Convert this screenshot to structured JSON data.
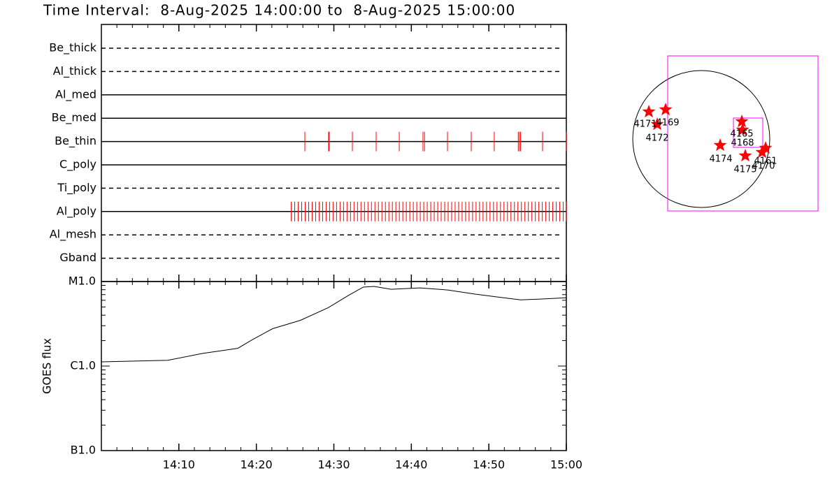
{
  "title": "Time Interval:  8-Aug-2025 14:00:00 to  8-Aug-2025 15:00:00",
  "chart_data": [
    {
      "type": "timeline",
      "categories": [
        "Be_thick",
        "Al_thick",
        "Al_med",
        "Be_med",
        "Be_thin",
        "C_poly",
        "Ti_poly",
        "Al_poly",
        "Al_mesh",
        "Gband"
      ],
      "dashed": [
        true,
        true,
        false,
        false,
        false,
        false,
        true,
        false,
        true,
        true
      ],
      "color": "#ff0000",
      "exposures": [
        [],
        [],
        [],
        [],
        [
          26.26,
          29.32,
          29.4,
          32.39,
          35.46,
          38.44,
          41.5,
          41.7,
          44.66,
          47.73,
          50.7,
          53.8,
          53.95,
          54.1,
          56.93,
          60.0
        ],
        [],
        [],
        [
          24.5,
          24.95,
          25.4,
          25.85,
          26.3,
          26.75,
          27.2,
          27.65,
          28.1,
          28.55,
          29.0,
          29.45,
          29.9,
          30.35,
          30.8,
          31.25,
          31.7,
          32.15,
          32.6,
          33.05,
          33.5,
          33.95,
          34.4,
          34.85,
          35.3,
          35.75,
          36.2,
          36.65,
          37.1,
          37.55,
          38.0,
          38.45,
          38.9,
          39.35,
          39.8,
          40.25,
          40.7,
          41.15,
          41.6,
          42.05,
          42.5,
          42.95,
          43.4,
          43.85,
          44.3,
          44.75,
          45.2,
          45.65,
          46.1,
          46.55,
          47.0,
          47.45,
          47.9,
          48.35,
          48.8,
          49.25,
          49.7,
          50.15,
          50.6,
          51.05,
          51.5,
          51.95,
          52.4,
          52.85,
          53.3,
          53.75,
          54.2,
          54.65,
          55.1,
          55.55,
          56.0,
          56.45,
          56.9,
          57.35,
          57.8,
          58.25,
          58.7,
          59.15,
          59.6,
          60.0
        ],
        [],
        []
      ],
      "xlim": [
        0,
        60
      ]
    },
    {
      "type": "line",
      "ylabel": "GOES flux",
      "x": [
        0,
        8.57,
        13.08,
        17.6,
        19.4,
        22.1,
        25.7,
        29.3,
        32.0,
        33.8,
        35.2,
        37.4,
        41.1,
        44.7,
        48.3,
        51.9,
        54.1,
        56.4,
        60
      ],
      "values": [
        1.12e-06,
        1.17e-06,
        1.41e-06,
        1.62e-06,
        2.03e-06,
        2.77e-06,
        3.48e-06,
        4.92e-06,
        6.95e-06,
        8.58e-06,
        8.75e-06,
        8.1e-06,
        8.41e-06,
        7.94e-06,
        7.08e-06,
        6.43e-06,
        6.07e-06,
        6.19e-06,
        6.43e-06
      ],
      "color": "#000000",
      "log_y": true,
      "ylim": [
        1e-07,
        1e-05
      ],
      "yticks": [
        {
          "value": 1e-07,
          "label": "B1.0"
        },
        {
          "value": 1e-06,
          "label": "C1.0"
        },
        {
          "value": 1e-05,
          "label": "M1.0"
        }
      ],
      "xlim": [
        0,
        60
      ],
      "xticks": [
        {
          "value": 10,
          "label": "14:10"
        },
        {
          "value": 20,
          "label": "14:20"
        },
        {
          "value": 30,
          "label": "14:30"
        },
        {
          "value": 40,
          "label": "14:40"
        },
        {
          "value": 50,
          "label": "14:50"
        },
        {
          "value": 60,
          "label": "15:00"
        }
      ]
    }
  ],
  "map": {
    "labels": [
      "4171",
      "4169",
      "4172",
      "4165",
      "4168",
      "4174",
      "4175",
      "4161",
      "4170"
    ],
    "color": "#ff0000",
    "box_color": "#ff00ff"
  }
}
